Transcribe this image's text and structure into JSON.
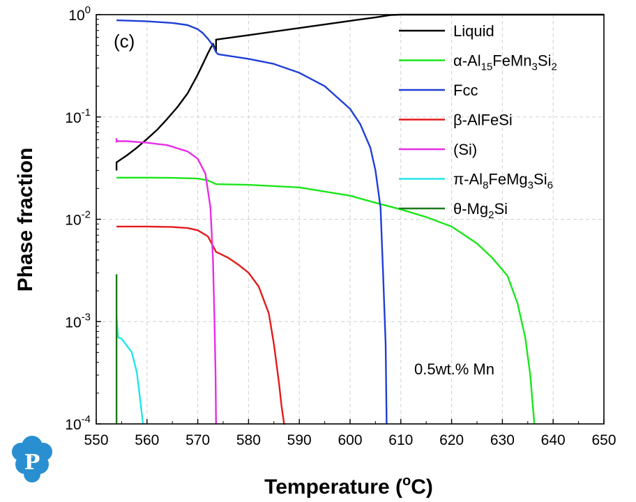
{
  "chart_data": {
    "type": "line",
    "xlabel": "Temperature (oC)",
    "xlabel_parts": {
      "before": "Temperature (",
      "sup": "o",
      "after": "C)"
    },
    "ylabel": "Phase fraction",
    "xlim": [
      550,
      650
    ],
    "ylim": [
      0.0001,
      1
    ],
    "yscale": "log",
    "xticks": [
      550,
      560,
      570,
      580,
      590,
      600,
      610,
      620,
      630,
      640,
      650
    ],
    "yticks": [
      {
        "value": 0.0001,
        "base": "10",
        "exp": "-4"
      },
      {
        "value": 0.001,
        "base": "10",
        "exp": "-3"
      },
      {
        "value": 0.01,
        "base": "10",
        "exp": "-2"
      },
      {
        "value": 0.1,
        "base": "10",
        "exp": "-1"
      },
      {
        "value": 1,
        "base": "10",
        "exp": "0"
      }
    ],
    "grid": true,
    "legend_position": "top-right",
    "panel_label": "(c)",
    "annotation": "0.5wt.% Mn",
    "logo_letter": "P",
    "series": [
      {
        "name": "Liquid",
        "label_parts": [
          {
            "t": "Liquid"
          }
        ],
        "color": "#000000",
        "x": [
          554.0,
          554.0,
          556,
          558,
          560,
          562,
          564,
          566,
          568,
          570,
          571,
          572,
          573,
          573.6,
          573.6,
          580,
          590,
          600,
          605,
          608,
          610,
          620,
          650
        ],
        "y": [
          0.03,
          0.036,
          0.042,
          0.05,
          0.061,
          0.075,
          0.096,
          0.125,
          0.17,
          0.26,
          0.33,
          0.42,
          0.52,
          0.44,
          0.57,
          0.63,
          0.74,
          0.87,
          0.94,
          0.99,
          1.0,
          1.0,
          1.0
        ]
      },
      {
        "name": "α-Al15FeMn3Si2",
        "label_parts": [
          {
            "t": "α-Al"
          },
          {
            "t": "15",
            "sub": true
          },
          {
            "t": "FeMn"
          },
          {
            "t": "3",
            "sub": true
          },
          {
            "t": "Si"
          },
          {
            "t": "2",
            "sub": true
          }
        ],
        "color": "#19e619",
        "x": [
          554,
          560,
          565,
          570,
          572,
          573.6,
          574,
          580,
          590,
          600,
          605,
          610,
          615,
          620,
          625,
          628,
          631,
          633,
          634.5,
          635.5,
          636.1,
          636.3
        ],
        "y": [
          0.0255,
          0.0255,
          0.0254,
          0.025,
          0.024,
          0.022,
          0.022,
          0.0217,
          0.0205,
          0.017,
          0.0145,
          0.0125,
          0.0105,
          0.0085,
          0.0058,
          0.0042,
          0.0028,
          0.0015,
          0.0007,
          0.0003,
          0.00013,
          0.0001
        ]
      },
      {
        "name": "Fcc",
        "label_parts": [
          {
            "t": "Fcc"
          }
        ],
        "color": "#1f3fd6",
        "x": [
          554,
          560,
          565,
          568,
          570,
          571,
          572,
          573,
          573.6,
          574,
          580,
          585,
          590,
          595,
          600,
          602,
          604,
          605,
          606,
          606.5,
          607,
          607.2
        ],
        "y": [
          0.88,
          0.86,
          0.83,
          0.79,
          0.72,
          0.66,
          0.58,
          0.5,
          0.43,
          0.41,
          0.37,
          0.33,
          0.27,
          0.2,
          0.12,
          0.085,
          0.05,
          0.03,
          0.013,
          0.003,
          0.0006,
          0.0001
        ]
      },
      {
        "name": "β-AlFeSi",
        "label_parts": [
          {
            "t": "β-AlFeSi"
          }
        ],
        "color": "#e41a1c",
        "x": [
          554,
          560,
          565,
          568,
          570,
          572,
          573.6,
          574,
          576,
          578,
          580,
          582,
          584,
          585,
          586,
          586.5,
          587,
          587.2
        ],
        "y": [
          0.0085,
          0.0085,
          0.0084,
          0.0082,
          0.0078,
          0.0068,
          0.0048,
          0.0047,
          0.0042,
          0.0036,
          0.003,
          0.0022,
          0.0012,
          0.0006,
          0.00025,
          0.00015,
          0.0001,
          0.0001
        ]
      },
      {
        "name": "(Si)",
        "label_parts": [
          {
            "t": "(Si)"
          }
        ],
        "color": "#e62ee6",
        "x": [
          554,
          554,
          554,
          556,
          560,
          564,
          568,
          570,
          571.5,
          572.5,
          573,
          573.3,
          573.5,
          573.6
        ],
        "y": [
          0.062,
          0.057,
          0.058,
          0.058,
          0.056,
          0.053,
          0.046,
          0.039,
          0.028,
          0.013,
          0.004,
          0.001,
          0.0003,
          0.0001
        ]
      },
      {
        "name": "π-Al8FeMg3Si6",
        "label_parts": [
          {
            "t": "π-Al"
          },
          {
            "t": "8",
            "sub": true
          },
          {
            "t": "FeMg"
          },
          {
            "t": "3",
            "sub": true
          },
          {
            "t": "Si"
          },
          {
            "t": "6",
            "sub": true
          }
        ],
        "color": "#22e6e6",
        "x": [
          554,
          554.3,
          555,
          557,
          558,
          558.8,
          559.2
        ],
        "y": [
          0.0011,
          0.0007,
          0.00068,
          0.0005,
          0.00032,
          0.00015,
          0.0001
        ]
      },
      {
        "name": "θ-Mg2Si",
        "label_parts": [
          {
            "t": "θ-Mg"
          },
          {
            "t": "2",
            "sub": true
          },
          {
            "t": "Si"
          }
        ],
        "color": "#1a7a1a",
        "x": [
          554,
          554
        ],
        "y": [
          0.0029,
          0.0001
        ]
      }
    ]
  }
}
